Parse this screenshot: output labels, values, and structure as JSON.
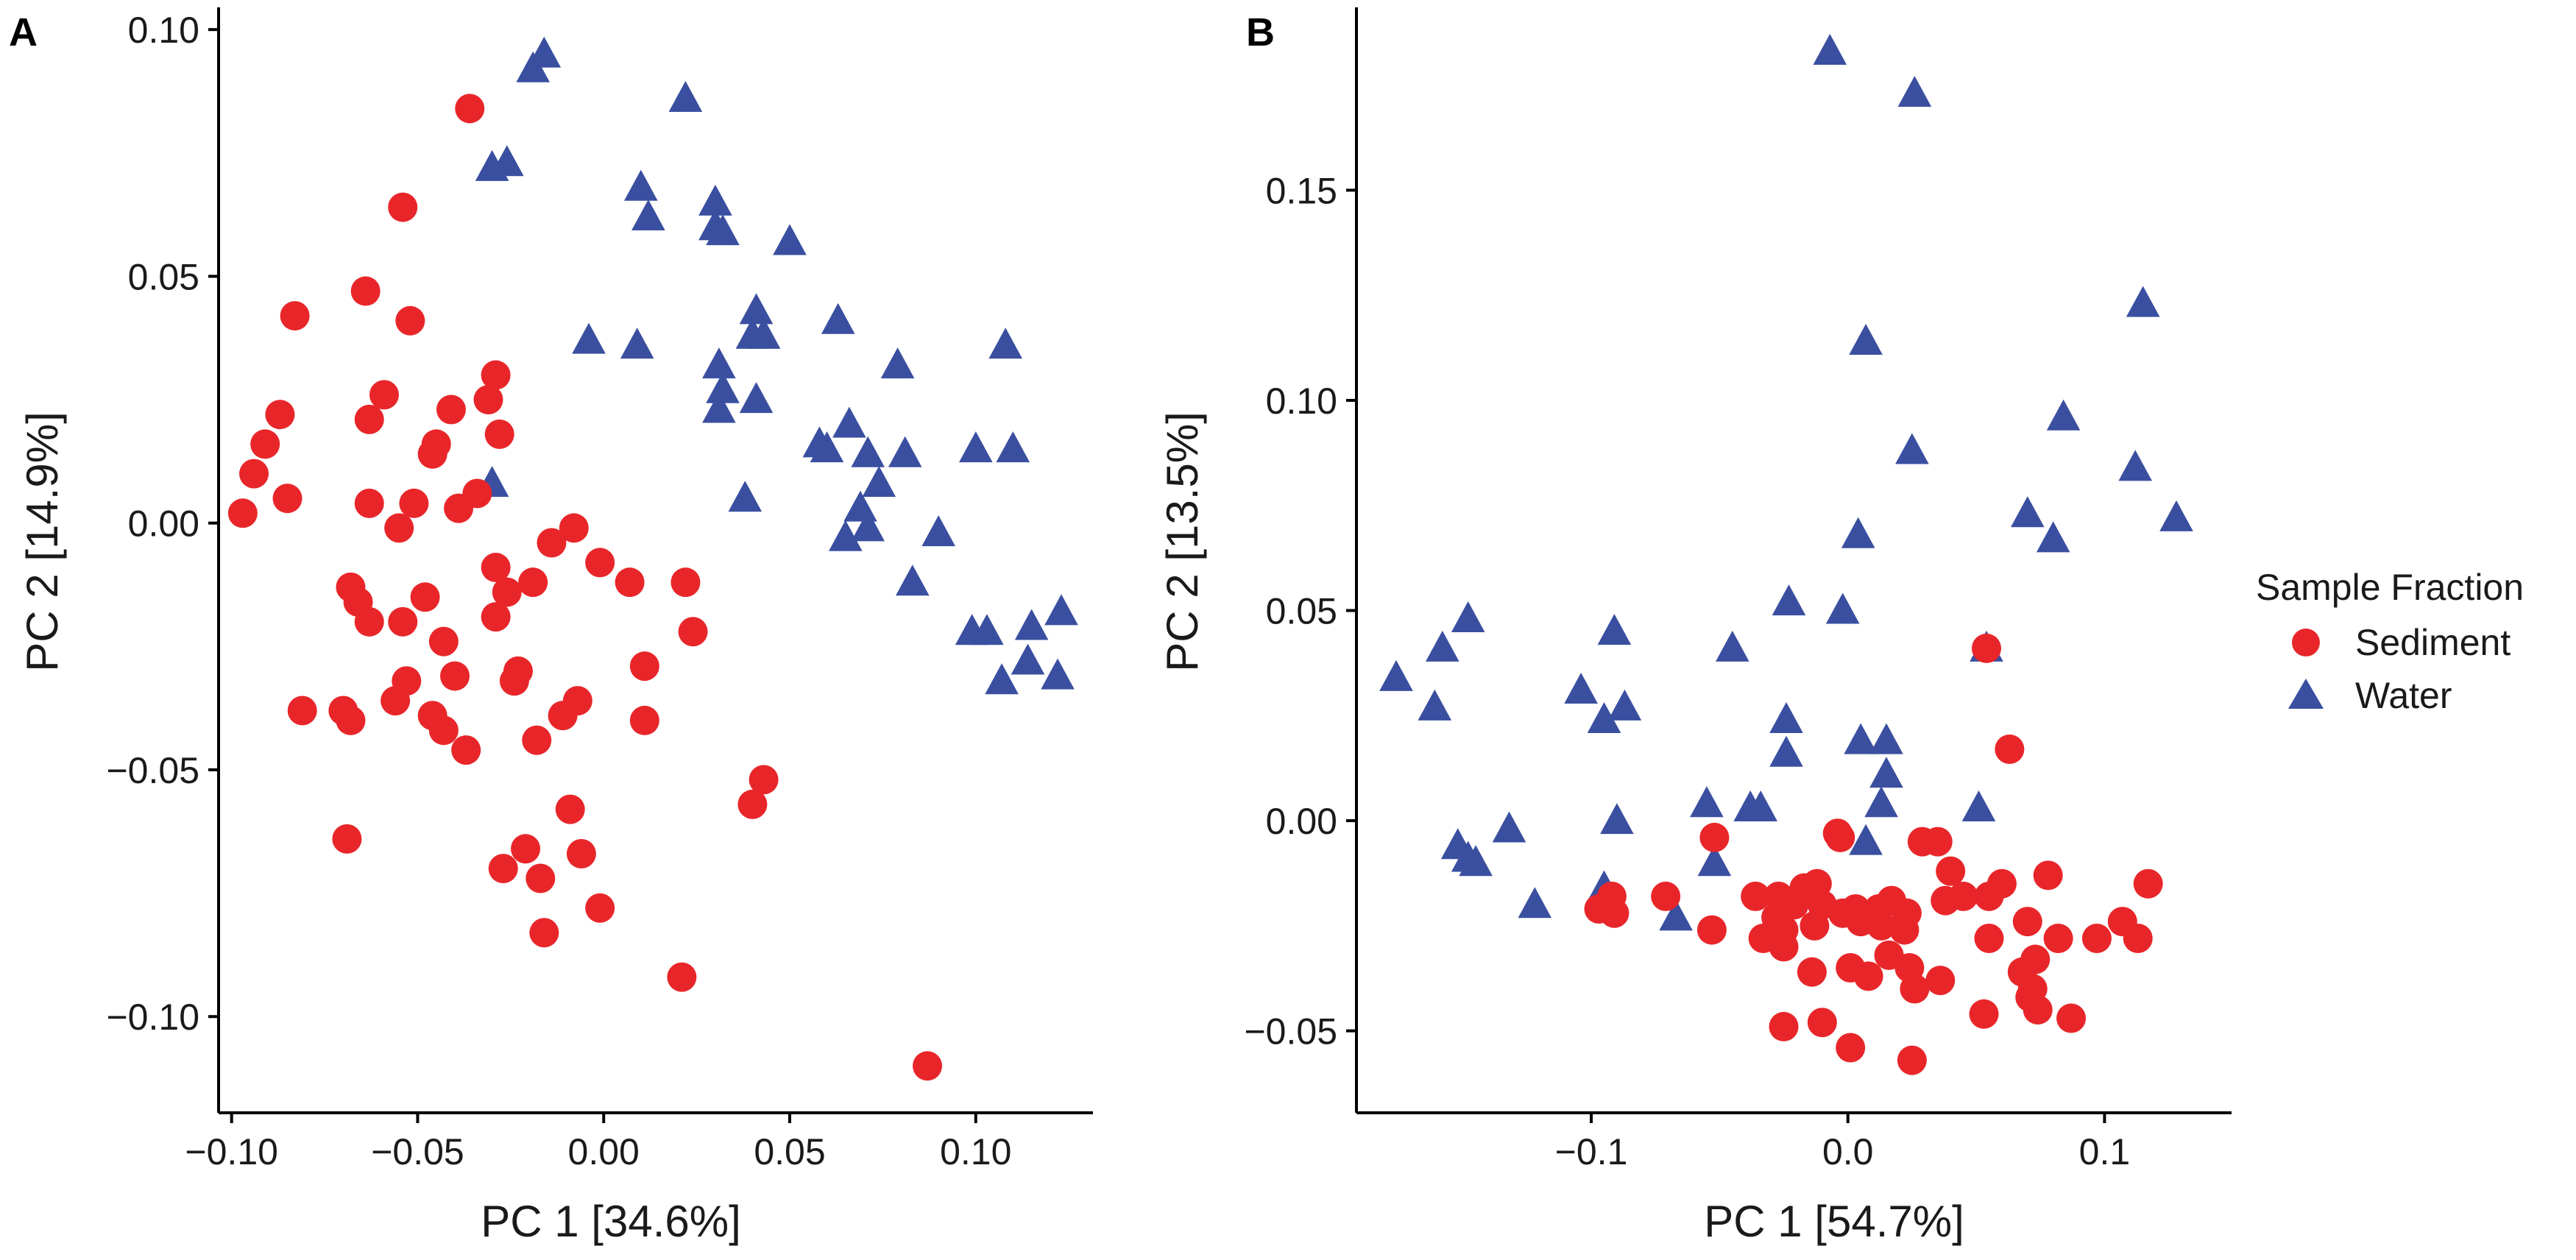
{
  "colors": {
    "sediment": "#E8262A",
    "water": "#3A4FA0"
  },
  "legend": {
    "title": "Sample Fraction",
    "items": [
      {
        "label": "Sediment",
        "shape": "circle",
        "series": "Sediment"
      },
      {
        "label": "Water",
        "shape": "triangle",
        "series": "Water"
      }
    ]
  },
  "chart_data": [
    {
      "panel": "A",
      "type": "scatter",
      "xlabel": "PC 1 [34.6%]",
      "ylabel": "PC 2 [14.9%]",
      "xlim": [
        -0.1035,
        0.1315
      ],
      "ylim": [
        -0.1195,
        0.1045
      ],
      "xticks": [
        -0.1,
        -0.05,
        0.0,
        0.05,
        0.1
      ],
      "xtick_labels": [
        "−0.10",
        "−0.05",
        "0.00",
        "0.05",
        "0.10"
      ],
      "yticks": [
        -0.1,
        -0.05,
        0.0,
        0.05,
        0.1
      ],
      "ytick_labels": [
        "−0.10",
        "−0.05",
        "0.00",
        "0.05",
        "0.10"
      ],
      "series": [
        {
          "name": "Sediment",
          "points": [
            [
              -0.036,
              0.084
            ],
            [
              -0.054,
              0.064
            ],
            [
              -0.083,
              0.042
            ],
            [
              -0.064,
              0.047
            ],
            [
              -0.052,
              0.041
            ],
            [
              -0.029,
              0.03
            ],
            [
              -0.059,
              0.026
            ],
            [
              -0.031,
              0.025
            ],
            [
              -0.041,
              0.023
            ],
            [
              -0.087,
              0.022
            ],
            [
              -0.063,
              0.021
            ],
            [
              -0.028,
              0.018
            ],
            [
              -0.045,
              0.016
            ],
            [
              -0.091,
              0.016
            ],
            [
              -0.046,
              0.014
            ],
            [
              -0.094,
              0.01
            ],
            [
              -0.085,
              0.005
            ],
            [
              -0.034,
              0.006
            ],
            [
              -0.063,
              0.004
            ],
            [
              -0.051,
              0.004
            ],
            [
              -0.039,
              0.003
            ],
            [
              -0.097,
              0.002
            ],
            [
              -0.055,
              -0.001
            ],
            [
              -0.008,
              -0.001
            ],
            [
              -0.014,
              -0.004
            ],
            [
              -0.029,
              -0.009
            ],
            [
              -0.001,
              -0.008
            ],
            [
              -0.068,
              -0.013
            ],
            [
              -0.066,
              -0.016
            ],
            [
              -0.019,
              -0.012
            ],
            [
              0.007,
              -0.012
            ],
            [
              0.022,
              -0.012
            ],
            [
              -0.026,
              -0.014
            ],
            [
              -0.048,
              -0.015
            ],
            [
              -0.063,
              -0.02
            ],
            [
              -0.054,
              -0.02
            ],
            [
              -0.029,
              -0.019
            ],
            [
              0.024,
              -0.022
            ],
            [
              -0.043,
              -0.024
            ],
            [
              -0.023,
              -0.03
            ],
            [
              -0.024,
              -0.032
            ],
            [
              0.011,
              -0.029
            ],
            [
              -0.04,
              -0.031
            ],
            [
              -0.053,
              -0.032
            ],
            [
              -0.056,
              -0.036
            ],
            [
              -0.07,
              -0.038
            ],
            [
              -0.081,
              -0.038
            ],
            [
              -0.007,
              -0.036
            ],
            [
              -0.046,
              -0.039
            ],
            [
              0.011,
              -0.04
            ],
            [
              -0.011,
              -0.039
            ],
            [
              -0.068,
              -0.04
            ],
            [
              -0.043,
              -0.042
            ],
            [
              -0.037,
              -0.046
            ],
            [
              -0.018,
              -0.044
            ],
            [
              0.043,
              -0.052
            ],
            [
              0.04,
              -0.057
            ],
            [
              -0.009,
              -0.058
            ],
            [
              -0.069,
              -0.064
            ],
            [
              -0.021,
              -0.066
            ],
            [
              -0.006,
              -0.067
            ],
            [
              -0.027,
              -0.07
            ],
            [
              -0.017,
              -0.072
            ],
            [
              -0.001,
              -0.078
            ],
            [
              -0.016,
              -0.083
            ],
            [
              0.021,
              -0.092
            ],
            [
              0.087,
              -0.11
            ]
          ]
        },
        {
          "name": "Water",
          "points": [
            [
              -0.016,
              0.095
            ],
            [
              -0.019,
              0.092
            ],
            [
              0.022,
              0.086
            ],
            [
              -0.026,
              0.073
            ],
            [
              -0.03,
              0.072
            ],
            [
              0.01,
              0.068
            ],
            [
              0.03,
              0.065
            ],
            [
              0.012,
              0.062
            ],
            [
              0.03,
              0.06
            ],
            [
              0.032,
              0.059
            ],
            [
              0.05,
              0.057
            ],
            [
              0.041,
              0.043
            ],
            [
              0.063,
              0.041
            ],
            [
              0.04,
              0.038
            ],
            [
              0.043,
              0.038
            ],
            [
              0.031,
              0.032
            ],
            [
              0.079,
              0.032
            ],
            [
              -0.004,
              0.037
            ],
            [
              0.009,
              0.036
            ],
            [
              0.108,
              0.036
            ],
            [
              0.032,
              0.027
            ],
            [
              0.041,
              0.025
            ],
            [
              0.031,
              0.023
            ],
            [
              0.066,
              0.02
            ],
            [
              0.058,
              0.016
            ],
            [
              0.06,
              0.015
            ],
            [
              0.071,
              0.014
            ],
            [
              0.081,
              0.014
            ],
            [
              0.1,
              0.015
            ],
            [
              0.11,
              0.015
            ],
            [
              -0.03,
              0.008
            ],
            [
              0.074,
              0.008
            ],
            [
              0.038,
              0.005
            ],
            [
              0.069,
              0.003
            ],
            [
              0.071,
              -0.001
            ],
            [
              0.065,
              -0.003
            ],
            [
              0.09,
              -0.002
            ],
            [
              0.083,
              -0.012
            ],
            [
              0.099,
              -0.022
            ],
            [
              0.103,
              -0.022
            ],
            [
              0.115,
              -0.021
            ],
            [
              0.123,
              -0.018
            ],
            [
              0.114,
              -0.028
            ],
            [
              0.107,
              -0.032
            ],
            [
              0.122,
              -0.031
            ]
          ]
        }
      ]
    },
    {
      "panel": "B",
      "type": "scatter",
      "xlabel": "PC 1 [54.7%]",
      "ylabel": "PC 2 [13.5%]",
      "xlim": [
        -0.1915,
        0.1495
      ],
      "ylim": [
        -0.0695,
        0.1935
      ],
      "xticks": [
        -0.1,
        0.0,
        0.1
      ],
      "xtick_labels": [
        "−0.1",
        "0.0",
        "0.1"
      ],
      "yticks": [
        -0.05,
        0.0,
        0.05,
        0.1,
        0.15
      ],
      "ytick_labels": [
        "−0.05",
        "0.00",
        "0.05",
        "0.10",
        "0.15"
      ],
      "series": [
        {
          "name": "Sediment",
          "points": [
            [
              0.054,
              0.041
            ],
            [
              0.063,
              0.017
            ],
            [
              -0.071,
              -0.018
            ],
            [
              -0.092,
              -0.018
            ],
            [
              -0.097,
              -0.021
            ],
            [
              -0.091,
              -0.022
            ],
            [
              -0.053,
              -0.026
            ],
            [
              -0.052,
              -0.004
            ],
            [
              -0.004,
              -0.003
            ],
            [
              -0.003,
              -0.004
            ],
            [
              0.029,
              -0.005
            ],
            [
              0.035,
              -0.005
            ],
            [
              -0.036,
              -0.018
            ],
            [
              -0.027,
              -0.018
            ],
            [
              -0.017,
              -0.016
            ],
            [
              -0.012,
              -0.015
            ],
            [
              -0.021,
              -0.02
            ],
            [
              -0.01,
              -0.02
            ],
            [
              -0.002,
              -0.022
            ],
            [
              0.003,
              -0.021
            ],
            [
              0.012,
              -0.021
            ],
            [
              0.017,
              -0.019
            ],
            [
              0.023,
              -0.022
            ],
            [
              0.038,
              -0.019
            ],
            [
              0.045,
              -0.018
            ],
            [
              0.055,
              -0.018
            ],
            [
              0.06,
              -0.015
            ],
            [
              0.078,
              -0.013
            ],
            [
              0.117,
              -0.015
            ],
            [
              -0.033,
              -0.028
            ],
            [
              -0.025,
              -0.026
            ],
            [
              -0.025,
              -0.03
            ],
            [
              -0.028,
              -0.023
            ],
            [
              -0.013,
              -0.025
            ],
            [
              0.005,
              -0.024
            ],
            [
              0.013,
              -0.025
            ],
            [
              0.022,
              -0.026
            ],
            [
              0.04,
              -0.012
            ],
            [
              0.055,
              -0.028
            ],
            [
              0.07,
              -0.024
            ],
            [
              0.082,
              -0.028
            ],
            [
              0.097,
              -0.028
            ],
            [
              0.107,
              -0.024
            ],
            [
              0.113,
              -0.028
            ],
            [
              -0.014,
              -0.036
            ],
            [
              0.001,
              -0.035
            ],
            [
              0.008,
              -0.037
            ],
            [
              0.016,
              -0.032
            ],
            [
              0.024,
              -0.035
            ],
            [
              0.026,
              -0.04
            ],
            [
              0.036,
              -0.038
            ],
            [
              0.068,
              -0.036
            ],
            [
              0.073,
              -0.033
            ],
            [
              0.072,
              -0.04
            ],
            [
              0.071,
              -0.042
            ],
            [
              0.074,
              -0.045
            ],
            [
              0.087,
              -0.047
            ],
            [
              -0.025,
              -0.049
            ],
            [
              -0.01,
              -0.048
            ],
            [
              0.001,
              -0.054
            ],
            [
              0.025,
              -0.057
            ],
            [
              0.053,
              -0.046
            ]
          ]
        },
        {
          "name": "Water",
          "points": [
            [
              -0.007,
              0.183
            ],
            [
              0.026,
              0.173
            ],
            [
              0.115,
              0.123
            ],
            [
              0.007,
              0.114
            ],
            [
              0.084,
              0.096
            ],
            [
              0.112,
              0.084
            ],
            [
              0.025,
              0.088
            ],
            [
              0.07,
              0.073
            ],
            [
              0.128,
              0.072
            ],
            [
              0.004,
              0.068
            ],
            [
              0.08,
              0.067
            ],
            [
              -0.023,
              0.052
            ],
            [
              -0.002,
              0.05
            ],
            [
              -0.148,
              0.048
            ],
            [
              -0.091,
              0.045
            ],
            [
              -0.158,
              0.041
            ],
            [
              -0.045,
              0.041
            ],
            [
              0.054,
              0.041
            ],
            [
              -0.176,
              0.034
            ],
            [
              -0.104,
              0.031
            ],
            [
              -0.161,
              0.027
            ],
            [
              -0.087,
              0.027
            ],
            [
              -0.095,
              0.024
            ],
            [
              -0.024,
              0.024
            ],
            [
              0.005,
              0.019
            ],
            [
              0.015,
              0.019
            ],
            [
              -0.024,
              0.016
            ],
            [
              0.015,
              0.011
            ],
            [
              -0.055,
              0.004
            ],
            [
              -0.034,
              0.003
            ],
            [
              -0.038,
              0.003
            ],
            [
              0.013,
              0.004
            ],
            [
              0.051,
              0.003
            ],
            [
              -0.09,
              0.0
            ],
            [
              -0.052,
              -0.01
            ],
            [
              0.007,
              -0.005
            ],
            [
              -0.132,
              -0.002
            ],
            [
              -0.152,
              -0.006
            ],
            [
              -0.148,
              -0.009
            ],
            [
              -0.145,
              -0.01
            ],
            [
              -0.122,
              -0.02
            ],
            [
              -0.095,
              -0.016
            ],
            [
              -0.067,
              -0.023
            ]
          ]
        }
      ]
    }
  ]
}
